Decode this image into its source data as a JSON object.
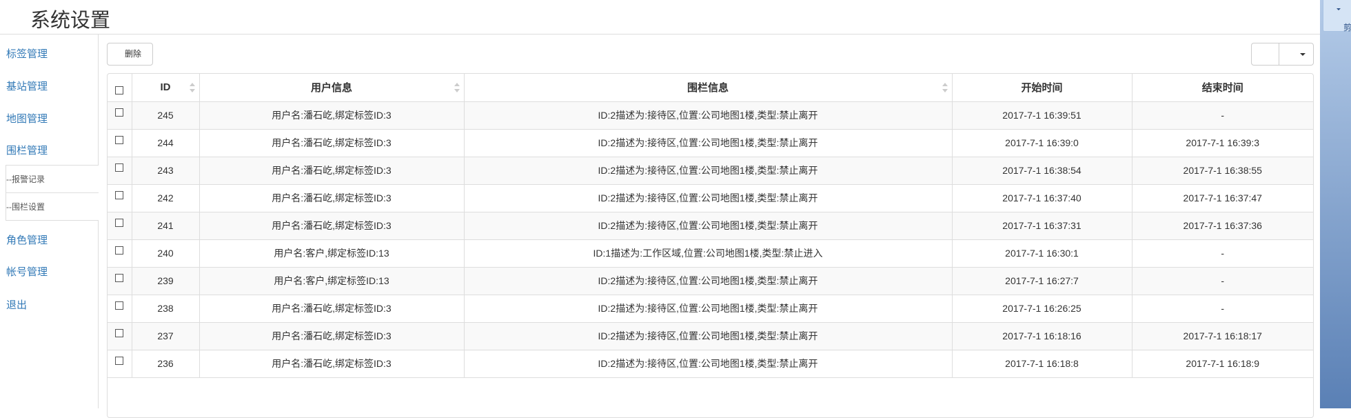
{
  "header": {
    "title": "系统设置"
  },
  "sidebar": {
    "items": [
      {
        "label": "标签管理"
      },
      {
        "label": "基站管理"
      },
      {
        "label": "地图管理"
      },
      {
        "label": "围栏管理"
      },
      {
        "label": "--报警记录"
      },
      {
        "label": "--围栏设置"
      },
      {
        "label": "角色管理"
      },
      {
        "label": "帐号管理"
      },
      {
        "label": "退出"
      }
    ]
  },
  "toolbar": {
    "delete_label": "删除"
  },
  "ribbon": {
    "label": "剪"
  },
  "table": {
    "columns": [
      "ID",
      "用户信息",
      "围栏信息",
      "开始时间",
      "结束时间"
    ],
    "rows": [
      {
        "id": "245",
        "user": "用户名:潘石屹,绑定标签ID:3",
        "fence": "ID:2描述为:接待区,位置:公司地图1楼,类型:禁止离开",
        "start": "2017-7-1 16:39:51",
        "end": "-"
      },
      {
        "id": "244",
        "user": "用户名:潘石屹,绑定标签ID:3",
        "fence": "ID:2描述为:接待区,位置:公司地图1楼,类型:禁止离开",
        "start": "2017-7-1 16:39:0",
        "end": "2017-7-1 16:39:3"
      },
      {
        "id": "243",
        "user": "用户名:潘石屹,绑定标签ID:3",
        "fence": "ID:2描述为:接待区,位置:公司地图1楼,类型:禁止离开",
        "start": "2017-7-1 16:38:54",
        "end": "2017-7-1 16:38:55"
      },
      {
        "id": "242",
        "user": "用户名:潘石屹,绑定标签ID:3",
        "fence": "ID:2描述为:接待区,位置:公司地图1楼,类型:禁止离开",
        "start": "2017-7-1 16:37:40",
        "end": "2017-7-1 16:37:47"
      },
      {
        "id": "241",
        "user": "用户名:潘石屹,绑定标签ID:3",
        "fence": "ID:2描述为:接待区,位置:公司地图1楼,类型:禁止离开",
        "start": "2017-7-1 16:37:31",
        "end": "2017-7-1 16:37:36"
      },
      {
        "id": "240",
        "user": "用户名:客户,绑定标签ID:13",
        "fence": "ID:1描述为:工作区域,位置:公司地图1楼,类型:禁止进入",
        "start": "2017-7-1 16:30:1",
        "end": "-"
      },
      {
        "id": "239",
        "user": "用户名:客户,绑定标签ID:13",
        "fence": "ID:2描述为:接待区,位置:公司地图1楼,类型:禁止离开",
        "start": "2017-7-1 16:27:7",
        "end": "-"
      },
      {
        "id": "238",
        "user": "用户名:潘石屹,绑定标签ID:3",
        "fence": "ID:2描述为:接待区,位置:公司地图1楼,类型:禁止离开",
        "start": "2017-7-1 16:26:25",
        "end": "-"
      },
      {
        "id": "237",
        "user": "用户名:潘石屹,绑定标签ID:3",
        "fence": "ID:2描述为:接待区,位置:公司地图1楼,类型:禁止离开",
        "start": "2017-7-1 16:18:16",
        "end": "2017-7-1 16:18:17"
      },
      {
        "id": "236",
        "user": "用户名:潘石屹,绑定标签ID:3",
        "fence": "ID:2描述为:接待区,位置:公司地图1楼,类型:禁止离开",
        "start": "2017-7-1 16:18:8",
        "end": "2017-7-1 16:18:9"
      }
    ]
  }
}
